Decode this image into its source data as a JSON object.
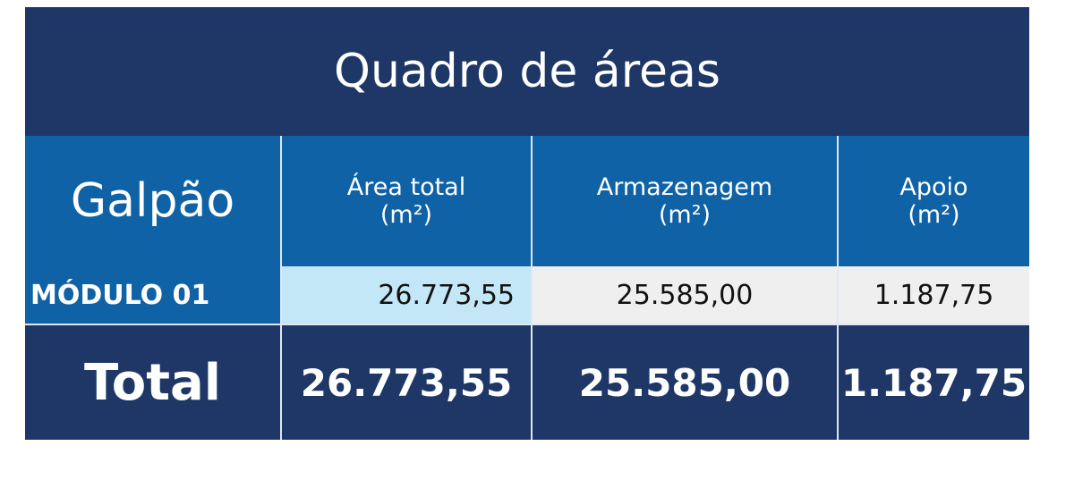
{
  "table": {
    "title": "Quadro de áreas",
    "header": [
      {
        "label": "Galpão"
      },
      {
        "label": "Área total",
        "unit": "(m²)"
      },
      {
        "label": "Armazenagem",
        "unit": "(m²)"
      },
      {
        "label": "Apoio",
        "unit": "(m²)"
      }
    ],
    "rows": [
      [
        "MÓDULO 01",
        "26.773,55",
        "25.585,00",
        "1.187,75"
      ]
    ],
    "total": [
      "Total",
      "26.773,55",
      "25.585,00",
      "1.187,75"
    ]
  }
}
